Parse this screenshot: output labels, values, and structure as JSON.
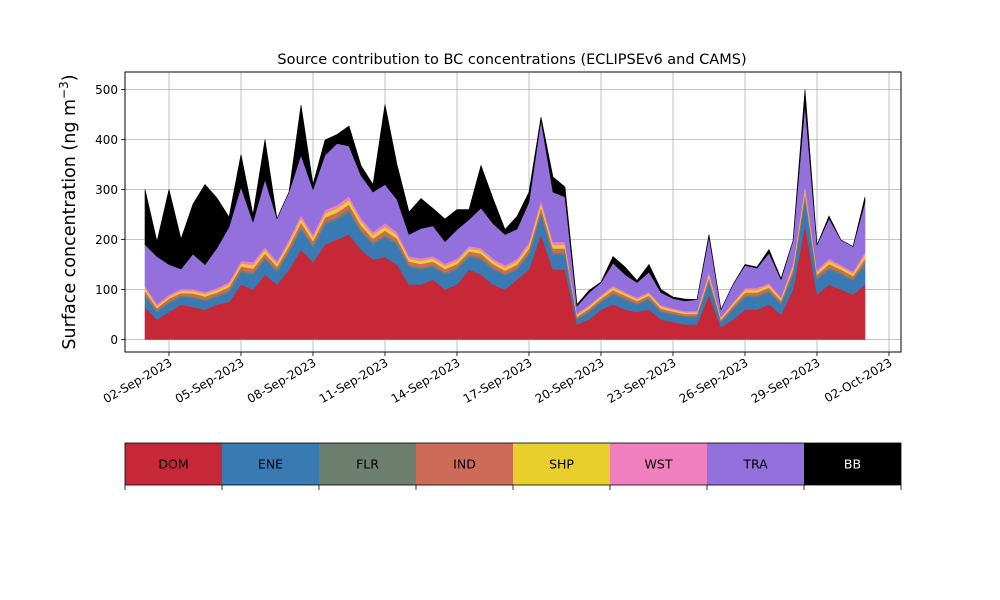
{
  "chart_data": {
    "type": "area",
    "title": "Source contribution to BC concentrations (ECLIPSEv6 and CAMS)",
    "ylabel_main": "Surface concentration (ng m",
    "ylabel_sup": "−3",
    "ylabel_close": ")",
    "xlabel": "",
    "xlim": [
      "2023-08-31T04:00",
      "2023-10-02T12:00"
    ],
    "ylim": [
      -25,
      535
    ],
    "y_ticks": [
      0,
      100,
      200,
      300,
      400,
      500
    ],
    "x_ticks": [
      "02-Sep-2023",
      "05-Sep-2023",
      "08-Sep-2023",
      "11-Sep-2023",
      "14-Sep-2023",
      "17-Sep-2023",
      "20-Sep-2023",
      "23-Sep-2023",
      "26-Sep-2023",
      "29-Sep-2023",
      "02-Oct-2023"
    ],
    "grid": true,
    "legend": "colorbar-below",
    "x": [
      "2023-09-01T00:00",
      "2023-09-01T12:00",
      "2023-09-02T00:00",
      "2023-09-02T12:00",
      "2023-09-03T00:00",
      "2023-09-03T12:00",
      "2023-09-04T00:00",
      "2023-09-04T12:00",
      "2023-09-05T00:00",
      "2023-09-05T12:00",
      "2023-09-06T00:00",
      "2023-09-06T12:00",
      "2023-09-07T00:00",
      "2023-09-07T12:00",
      "2023-09-08T00:00",
      "2023-09-08T12:00",
      "2023-09-09T00:00",
      "2023-09-09T12:00",
      "2023-09-10T00:00",
      "2023-09-10T12:00",
      "2023-09-11T00:00",
      "2023-09-11T12:00",
      "2023-09-12T00:00",
      "2023-09-12T12:00",
      "2023-09-13T00:00",
      "2023-09-13T12:00",
      "2023-09-14T00:00",
      "2023-09-14T12:00",
      "2023-09-15T00:00",
      "2023-09-15T12:00",
      "2023-09-16T00:00",
      "2023-09-16T12:00",
      "2023-09-17T00:00",
      "2023-09-17T12:00",
      "2023-09-18T00:00",
      "2023-09-18T12:00",
      "2023-09-19T00:00",
      "2023-09-19T12:00",
      "2023-09-20T00:00",
      "2023-09-20T12:00",
      "2023-09-21T00:00",
      "2023-09-21T12:00",
      "2023-09-22T00:00",
      "2023-09-22T12:00",
      "2023-09-23T00:00",
      "2023-09-23T12:00",
      "2023-09-24T00:00",
      "2023-09-24T12:00",
      "2023-09-25T00:00",
      "2023-09-25T12:00",
      "2023-09-26T00:00",
      "2023-09-26T12:00",
      "2023-09-27T00:00",
      "2023-09-27T12:00",
      "2023-09-28T00:00",
      "2023-09-28T12:00",
      "2023-09-29T00:00",
      "2023-09-29T12:00",
      "2023-09-30T00:00",
      "2023-09-30T12:00",
      "2023-10-01T00:00"
    ],
    "series": [
      {
        "name": "DOM",
        "color": "#c62838",
        "values": [
          65,
          40,
          55,
          70,
          65,
          60,
          70,
          75,
          110,
          100,
          130,
          110,
          140,
          180,
          155,
          190,
          200,
          210,
          180,
          160,
          165,
          150,
          110,
          110,
          120,
          100,
          110,
          140,
          130,
          110,
          100,
          120,
          140,
          210,
          140,
          140,
          30,
          40,
          60,
          70,
          60,
          55,
          60,
          40,
          35,
          30,
          30,
          90,
          25,
          40,
          60,
          60,
          70,
          50,
          100,
          230,
          90,
          110,
          100,
          90,
          110
        ]
      },
      {
        "name": "ENE",
        "color": "#3a7ab3",
        "values": [
          22,
          15,
          18,
          15,
          18,
          17,
          15,
          20,
          25,
          30,
          30,
          25,
          35,
          40,
          30,
          40,
          40,
          45,
          35,
          30,
          40,
          40,
          35,
          30,
          25,
          30,
          30,
          25,
          30,
          30,
          28,
          20,
          30,
          40,
          30,
          30,
          10,
          15,
          15,
          20,
          20,
          15,
          20,
          15,
          15,
          15,
          15,
          25,
          10,
          20,
          25,
          25,
          25,
          20,
          30,
          50,
          30,
          30,
          30,
          28,
          40
        ]
      },
      {
        "name": "FLR",
        "color": "#6d8070",
        "values": [
          3,
          3,
          3,
          3,
          3,
          3,
          3,
          3,
          4,
          4,
          4,
          4,
          4,
          5,
          4,
          5,
          5,
          5,
          4,
          4,
          4,
          4,
          4,
          4,
          4,
          4,
          4,
          4,
          4,
          4,
          3,
          3,
          4,
          5,
          4,
          4,
          2,
          2,
          2,
          3,
          3,
          2,
          3,
          2,
          2,
          2,
          2,
          3,
          2,
          3,
          3,
          3,
          3,
          3,
          4,
          5,
          4,
          4,
          4,
          3,
          4
        ]
      },
      {
        "name": "IND",
        "color": "#cd6a58",
        "values": [
          7,
          5,
          6,
          5,
          6,
          6,
          6,
          7,
          7,
          8,
          8,
          7,
          8,
          9,
          8,
          9,
          9,
          10,
          9,
          8,
          9,
          8,
          7,
          7,
          7,
          7,
          7,
          7,
          8,
          7,
          7,
          7,
          8,
          9,
          8,
          8,
          4,
          5,
          5,
          6,
          5,
          5,
          5,
          5,
          4,
          4,
          4,
          7,
          3,
          5,
          6,
          6,
          6,
          5,
          7,
          10,
          6,
          7,
          6,
          6,
          8
        ]
      },
      {
        "name": "SHP",
        "color": "#e8cf2c",
        "values": [
          6,
          4,
          4,
          4,
          5,
          5,
          5,
          5,
          6,
          7,
          7,
          6,
          7,
          8,
          7,
          8,
          8,
          9,
          8,
          7,
          8,
          7,
          6,
          6,
          6,
          6,
          6,
          6,
          6,
          6,
          6,
          6,
          7,
          8,
          7,
          7,
          3,
          4,
          4,
          5,
          4,
          4,
          4,
          4,
          3,
          3,
          3,
          6,
          3,
          4,
          5,
          5,
          5,
          4,
          6,
          8,
          5,
          6,
          5,
          5,
          7
        ]
      },
      {
        "name": "WST",
        "color": "#f07fbf",
        "values": [
          5,
          4,
          4,
          4,
          4,
          4,
          4,
          5,
          5,
          6,
          6,
          5,
          6,
          7,
          6,
          7,
          7,
          8,
          7,
          6,
          7,
          6,
          5,
          5,
          5,
          5,
          5,
          5,
          5,
          5,
          5,
          5,
          6,
          7,
          6,
          6,
          3,
          3,
          3,
          4,
          3,
          3,
          3,
          3,
          3,
          3,
          3,
          5,
          2,
          3,
          4,
          4,
          4,
          3,
          5,
          7,
          4,
          5,
          4,
          4,
          6
        ]
      },
      {
        "name": "TRA",
        "color": "#9370db",
        "values": [
          82,
          95,
          60,
          40,
          70,
          55,
          80,
          110,
          148,
          80,
          135,
          85,
          95,
          120,
          90,
          110,
          123,
          100,
          85,
          80,
          77,
          65,
          43,
          60,
          60,
          44,
          58,
          53,
          80,
          70,
          61,
          60,
          80,
          160,
          100,
          90,
          15,
          25,
          25,
          45,
          35,
          30,
          40,
          25,
          20,
          20,
          23,
          70,
          15,
          35,
          45,
          40,
          60,
          35,
          45,
          160,
          50,
          80,
          50,
          50,
          100
        ]
      },
      {
        "name": "BB",
        "color": "#000000",
        "values": [
          110,
          30,
          150,
          60,
          100,
          160,
          100,
          20,
          65,
          15,
          80,
          0,
          0,
          100,
          10,
          30,
          18,
          40,
          20,
          15,
          160,
          70,
          45,
          60,
          35,
          45,
          40,
          20,
          85,
          50,
          10,
          25,
          20,
          6,
          30,
          20,
          3,
          4,
          1,
          13,
          15,
          4,
          15,
          6,
          3,
          4,
          0,
          4,
          0,
          0,
          2,
          2,
          7,
          2,
          0,
          30,
          0,
          5,
          0,
          0,
          10
        ]
      }
    ]
  }
}
